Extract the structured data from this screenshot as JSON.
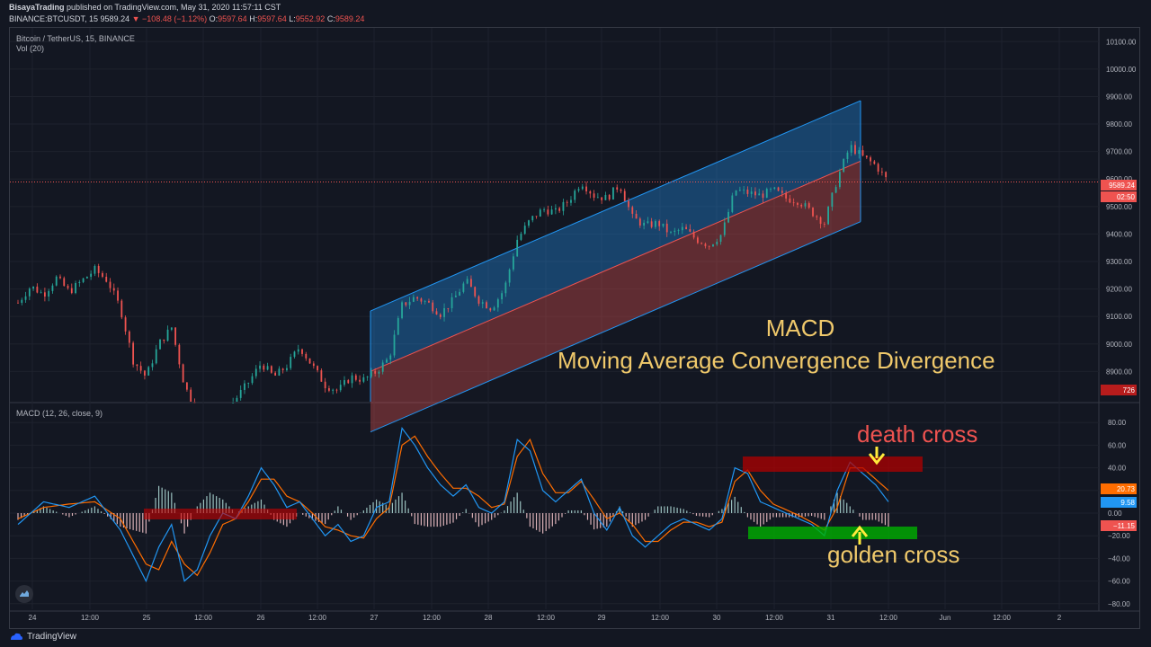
{
  "header": {
    "author": "BisayaTrading",
    "published_text": "published on TradingView.com, May 31, 2020 11:57:11 CST",
    "symbol_line": "BINANCE:BTCUSDT, 15",
    "last": "9589.24",
    "change": "−108.48 (−1.12%)",
    "o_label": "O:",
    "o_val": "9597.64",
    "h_label": "H:",
    "h_val": "9597.64",
    "l_label": "L:",
    "l_val": "9552.92",
    "c_label": "C:",
    "c_val": "9589.24"
  },
  "price_pane": {
    "title": "Bitcoin / TetherUS, 15, BINANCE",
    "volume_label": "Vol (20)",
    "current_price_tag": "9589.24",
    "countdown_tag": "02:50",
    "volume_tag": "726"
  },
  "macd_pane": {
    "title": "MACD (12, 26, close, 9)",
    "tags": [
      "20.73",
      "9.58",
      "−11.15"
    ]
  },
  "overlay": {
    "title": "MACD",
    "subtitle": "Moving Average Convergence Divergence",
    "death_cross": "death cross",
    "golden_cross": "golden cross"
  },
  "footer": {
    "brand": "TradingView"
  },
  "colors": {
    "background": "#131722",
    "up": "#26a69a",
    "down": "#ef5350",
    "macd_line": "#2196f3",
    "signal_line": "#ff6d00",
    "channel_upper": "#1e5a96",
    "channel_lower": "#8b2a2a",
    "overlay_text": "#f0c96b",
    "highlight_green": "#00b000",
    "highlight_red": "#b00000",
    "arrow_yellow": "#ffeb3b"
  },
  "icons": {
    "brand_logo": "tradingview-logo-icon",
    "chat_bubble": "chat-bubble-icon"
  },
  "chart_data": {
    "type": "line",
    "price_axis": {
      "ticks": [
        "10100.00",
        "10000.00",
        "9900.00",
        "9800.00",
        "9700.00",
        "9600.00",
        "9500.00",
        "9400.00",
        "9300.00",
        "9200.00",
        "9100.00",
        "9000.00",
        "8900.00"
      ]
    },
    "macd_axis": {
      "ticks": [
        "80.00",
        "60.00",
        "40.00",
        "20.00",
        "0.00",
        "−20.00",
        "−40.00",
        "−60.00",
        "−80.00"
      ]
    },
    "time_axis": {
      "ticks": [
        "24",
        "12:00",
        "25",
        "12:00",
        "26",
        "12:00",
        "27",
        "12:00",
        "28",
        "12:00",
        "29",
        "12:00",
        "30",
        "12:00",
        "31",
        "12:00",
        "Jun",
        "12:00",
        "2"
      ]
    },
    "price_series": [
      {
        "t": 0,
        "v": 9150
      },
      {
        "t": 2,
        "v": 9210
      },
      {
        "t": 4,
        "v": 9180
      },
      {
        "t": 6,
        "v": 9240
      },
      {
        "t": 8,
        "v": 9190
      },
      {
        "t": 10,
        "v": 9230
      },
      {
        "t": 12,
        "v": 9270
      },
      {
        "t": 14,
        "v": 9230
      },
      {
        "t": 16,
        "v": 9130
      },
      {
        "t": 18,
        "v": 8940
      },
      {
        "t": 20,
        "v": 8880
      },
      {
        "t": 22,
        "v": 9000
      },
      {
        "t": 24,
        "v": 9060
      },
      {
        "t": 26,
        "v": 8850
      },
      {
        "t": 28,
        "v": 8750
      },
      {
        "t": 30,
        "v": 8770
      },
      {
        "t": 32,
        "v": 8740
      },
      {
        "t": 34,
        "v": 8800
      },
      {
        "t": 36,
        "v": 8860
      },
      {
        "t": 38,
        "v": 8930
      },
      {
        "t": 40,
        "v": 8880
      },
      {
        "t": 42,
        "v": 8920
      },
      {
        "t": 44,
        "v": 8990
      },
      {
        "t": 46,
        "v": 8920
      },
      {
        "t": 48,
        "v": 8850
      },
      {
        "t": 50,
        "v": 8830
      },
      {
        "t": 52,
        "v": 8880
      },
      {
        "t": 54,
        "v": 8870
      },
      {
        "t": 56,
        "v": 8900
      },
      {
        "t": 58,
        "v": 8950
      },
      {
        "t": 60,
        "v": 9140
      },
      {
        "t": 62,
        "v": 9170
      },
      {
        "t": 64,
        "v": 9150
      },
      {
        "t": 66,
        "v": 9110
      },
      {
        "t": 68,
        "v": 9160
      },
      {
        "t": 70,
        "v": 9230
      },
      {
        "t": 72,
        "v": 9160
      },
      {
        "t": 74,
        "v": 9130
      },
      {
        "t": 76,
        "v": 9200
      },
      {
        "t": 78,
        "v": 9380
      },
      {
        "t": 80,
        "v": 9450
      },
      {
        "t": 82,
        "v": 9490
      },
      {
        "t": 84,
        "v": 9480
      },
      {
        "t": 86,
        "v": 9520
      },
      {
        "t": 88,
        "v": 9590
      },
      {
        "t": 90,
        "v": 9540
      },
      {
        "t": 92,
        "v": 9530
      },
      {
        "t": 94,
        "v": 9580
      },
      {
        "t": 96,
        "v": 9460
      },
      {
        "t": 98,
        "v": 9430
      },
      {
        "t": 100,
        "v": 9440
      },
      {
        "t": 102,
        "v": 9400
      },
      {
        "t": 104,
        "v": 9420
      },
      {
        "t": 106,
        "v": 9380
      },
      {
        "t": 108,
        "v": 9360
      },
      {
        "t": 110,
        "v": 9400
      },
      {
        "t": 112,
        "v": 9560
      },
      {
        "t": 114,
        "v": 9550
      },
      {
        "t": 116,
        "v": 9540
      },
      {
        "t": 118,
        "v": 9560
      },
      {
        "t": 120,
        "v": 9530
      },
      {
        "t": 122,
        "v": 9520
      },
      {
        "t": 124,
        "v": 9480
      },
      {
        "t": 126,
        "v": 9440
      },
      {
        "t": 128,
        "v": 9600
      },
      {
        "t": 130,
        "v": 9720
      },
      {
        "t": 132,
        "v": 9680
      },
      {
        "t": 134,
        "v": 9650
      },
      {
        "t": 136,
        "v": 9589
      }
    ],
    "macd_line": [
      {
        "t": 0,
        "v": -10
      },
      {
        "t": 4,
        "v": 10
      },
      {
        "t": 8,
        "v": 5
      },
      {
        "t": 12,
        "v": 15
      },
      {
        "t": 16,
        "v": -15
      },
      {
        "t": 20,
        "v": -60
      },
      {
        "t": 22,
        "v": -30
      },
      {
        "t": 24,
        "v": -10
      },
      {
        "t": 26,
        "v": -60
      },
      {
        "t": 28,
        "v": -50
      },
      {
        "t": 30,
        "v": -20
      },
      {
        "t": 32,
        "v": 0
      },
      {
        "t": 34,
        "v": -5
      },
      {
        "t": 36,
        "v": 15
      },
      {
        "t": 38,
        "v": 40
      },
      {
        "t": 40,
        "v": 25
      },
      {
        "t": 42,
        "v": 5
      },
      {
        "t": 44,
        "v": 10
      },
      {
        "t": 46,
        "v": -5
      },
      {
        "t": 48,
        "v": -20
      },
      {
        "t": 50,
        "v": -10
      },
      {
        "t": 52,
        "v": -25
      },
      {
        "t": 54,
        "v": -20
      },
      {
        "t": 56,
        "v": 5
      },
      {
        "t": 58,
        "v": 10
      },
      {
        "t": 60,
        "v": 75
      },
      {
        "t": 62,
        "v": 60
      },
      {
        "t": 64,
        "v": 40
      },
      {
        "t": 66,
        "v": 25
      },
      {
        "t": 68,
        "v": 15
      },
      {
        "t": 70,
        "v": 25
      },
      {
        "t": 72,
        "v": 5
      },
      {
        "t": 74,
        "v": 0
      },
      {
        "t": 76,
        "v": 10
      },
      {
        "t": 78,
        "v": 65
      },
      {
        "t": 80,
        "v": 55
      },
      {
        "t": 82,
        "v": 20
      },
      {
        "t": 84,
        "v": 10
      },
      {
        "t": 86,
        "v": 20
      },
      {
        "t": 88,
        "v": 30
      },
      {
        "t": 90,
        "v": 0
      },
      {
        "t": 92,
        "v": -15
      },
      {
        "t": 94,
        "v": 5
      },
      {
        "t": 96,
        "v": -20
      },
      {
        "t": 98,
        "v": -30
      },
      {
        "t": 100,
        "v": -20
      },
      {
        "t": 102,
        "v": -10
      },
      {
        "t": 104,
        "v": -5
      },
      {
        "t": 106,
        "v": -10
      },
      {
        "t": 108,
        "v": -15
      },
      {
        "t": 110,
        "v": -5
      },
      {
        "t": 112,
        "v": 40
      },
      {
        "t": 114,
        "v": 35
      },
      {
        "t": 116,
        "v": 10
      },
      {
        "t": 118,
        "v": 5
      },
      {
        "t": 120,
        "v": 0
      },
      {
        "t": 122,
        "v": -5
      },
      {
        "t": 124,
        "v": -10
      },
      {
        "t": 126,
        "v": -20
      },
      {
        "t": 128,
        "v": 20
      },
      {
        "t": 130,
        "v": 45
      },
      {
        "t": 132,
        "v": 35
      },
      {
        "t": 134,
        "v": 25
      },
      {
        "t": 136,
        "v": 10
      }
    ],
    "signal_line": [
      {
        "t": 0,
        "v": -5
      },
      {
        "t": 4,
        "v": 5
      },
      {
        "t": 8,
        "v": 8
      },
      {
        "t": 12,
        "v": 10
      },
      {
        "t": 16,
        "v": -5
      },
      {
        "t": 20,
        "v": -45
      },
      {
        "t": 22,
        "v": -50
      },
      {
        "t": 24,
        "v": -25
      },
      {
        "t": 26,
        "v": -45
      },
      {
        "t": 28,
        "v": -55
      },
      {
        "t": 30,
        "v": -35
      },
      {
        "t": 32,
        "v": -10
      },
      {
        "t": 34,
        "v": -5
      },
      {
        "t": 36,
        "v": 10
      },
      {
        "t": 38,
        "v": 30
      },
      {
        "t": 40,
        "v": 30
      },
      {
        "t": 42,
        "v": 15
      },
      {
        "t": 44,
        "v": 10
      },
      {
        "t": 46,
        "v": 0
      },
      {
        "t": 48,
        "v": -12
      },
      {
        "t": 50,
        "v": -15
      },
      {
        "t": 52,
        "v": -20
      },
      {
        "t": 54,
        "v": -22
      },
      {
        "t": 56,
        "v": -5
      },
      {
        "t": 58,
        "v": 5
      },
      {
        "t": 60,
        "v": 60
      },
      {
        "t": 62,
        "v": 68
      },
      {
        "t": 64,
        "v": 50
      },
      {
        "t": 66,
        "v": 35
      },
      {
        "t": 68,
        "v": 22
      },
      {
        "t": 70,
        "v": 22
      },
      {
        "t": 72,
        "v": 15
      },
      {
        "t": 74,
        "v": 5
      },
      {
        "t": 76,
        "v": 8
      },
      {
        "t": 78,
        "v": 50
      },
      {
        "t": 80,
        "v": 65
      },
      {
        "t": 82,
        "v": 35
      },
      {
        "t": 84,
        "v": 18
      },
      {
        "t": 86,
        "v": 18
      },
      {
        "t": 88,
        "v": 28
      },
      {
        "t": 90,
        "v": 12
      },
      {
        "t": 92,
        "v": -5
      },
      {
        "t": 94,
        "v": 0
      },
      {
        "t": 96,
        "v": -10
      },
      {
        "t": 98,
        "v": -25
      },
      {
        "t": 100,
        "v": -25
      },
      {
        "t": 102,
        "v": -15
      },
      {
        "t": 104,
        "v": -8
      },
      {
        "t": 106,
        "v": -8
      },
      {
        "t": 108,
        "v": -12
      },
      {
        "t": 110,
        "v": -8
      },
      {
        "t": 112,
        "v": 28
      },
      {
        "t": 114,
        "v": 38
      },
      {
        "t": 116,
        "v": 20
      },
      {
        "t": 118,
        "v": 8
      },
      {
        "t": 120,
        "v": 3
      },
      {
        "t": 122,
        "v": -2
      },
      {
        "t": 124,
        "v": -8
      },
      {
        "t": 126,
        "v": -15
      },
      {
        "t": 128,
        "v": 5
      },
      {
        "t": 130,
        "v": 40
      },
      {
        "t": 132,
        "v": 40
      },
      {
        "t": 134,
        "v": 30
      },
      {
        "t": 136,
        "v": 20
      }
    ]
  }
}
